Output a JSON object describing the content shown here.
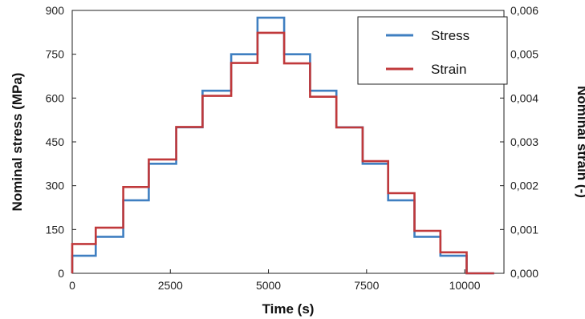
{
  "chart_data": {
    "type": "line",
    "title": "",
    "xlabel": "Time (s)",
    "ylabel_left": "Nominal stress (MPa)",
    "ylabel_right": "Nominal strain (-)",
    "xlim": [
      0,
      11000
    ],
    "ylim_left": [
      0,
      900
    ],
    "ylim_right": [
      0,
      0.006
    ],
    "x_ticks": [
      0,
      2500,
      5000,
      7500,
      10000
    ],
    "x_tick_labels": [
      "0",
      "2500",
      "5000",
      "7500",
      "10000"
    ],
    "y_left_ticks": [
      0,
      150,
      300,
      450,
      600,
      750,
      900
    ],
    "y_left_tick_labels": [
      "0",
      "150",
      "300",
      "450",
      "600",
      "750",
      "900"
    ],
    "y_right_ticks": [
      0,
      0.001,
      0.002,
      0.003,
      0.004,
      0.005,
      0.006
    ],
    "y_right_tick_labels": [
      "0,000",
      "0,001",
      "0,002",
      "0,003",
      "0,004",
      "0,005",
      "0,006"
    ],
    "grid": false,
    "legend_position": "top-right",
    "series": [
      {
        "name": "Stress",
        "axis": "left",
        "color": "#3f7fc1",
        "steps": [
          {
            "x0": 0,
            "x1": 600,
            "y": 60
          },
          {
            "x0": 600,
            "x1": 1300,
            "y": 125
          },
          {
            "x0": 1300,
            "x1": 1950,
            "y": 250
          },
          {
            "x0": 1950,
            "x1": 2650,
            "y": 375
          },
          {
            "x0": 2650,
            "x1": 3320,
            "y": 500
          },
          {
            "x0": 3320,
            "x1": 4050,
            "y": 625
          },
          {
            "x0": 4050,
            "x1": 4720,
            "y": 750
          },
          {
            "x0": 4720,
            "x1": 5400,
            "y": 875
          },
          {
            "x0": 5400,
            "x1": 6060,
            "y": 750
          },
          {
            "x0": 6060,
            "x1": 6730,
            "y": 625
          },
          {
            "x0": 6730,
            "x1": 7400,
            "y": 500
          },
          {
            "x0": 7400,
            "x1": 8050,
            "y": 375
          },
          {
            "x0": 8050,
            "x1": 8720,
            "y": 250
          },
          {
            "x0": 8720,
            "x1": 9380,
            "y": 125
          },
          {
            "x0": 9380,
            "x1": 10050,
            "y": 60
          },
          {
            "x0": 10050,
            "x1": 10750,
            "y": 0
          }
        ]
      },
      {
        "name": "Strain",
        "axis": "right",
        "color": "#c0393b",
        "steps": [
          {
            "x0": 0,
            "x1": 600,
            "y": 0.00067
          },
          {
            "x0": 600,
            "x1": 1300,
            "y": 0.00104
          },
          {
            "x0": 1300,
            "x1": 1950,
            "y": 0.00197
          },
          {
            "x0": 1950,
            "x1": 2650,
            "y": 0.0026
          },
          {
            "x0": 2650,
            "x1": 3320,
            "y": 0.00334
          },
          {
            "x0": 3320,
            "x1": 4050,
            "y": 0.00405
          },
          {
            "x0": 4050,
            "x1": 4720,
            "y": 0.0048
          },
          {
            "x0": 4720,
            "x1": 5400,
            "y": 0.00549
          },
          {
            "x0": 5400,
            "x1": 6060,
            "y": 0.00479
          },
          {
            "x0": 6060,
            "x1": 6730,
            "y": 0.00403
          },
          {
            "x0": 6730,
            "x1": 7400,
            "y": 0.00333
          },
          {
            "x0": 7400,
            "x1": 8050,
            "y": 0.00256
          },
          {
            "x0": 8050,
            "x1": 8720,
            "y": 0.00183
          },
          {
            "x0": 8720,
            "x1": 9380,
            "y": 0.00097
          },
          {
            "x0": 9380,
            "x1": 10050,
            "y": 0.00048
          },
          {
            "x0": 10050,
            "x1": 10750,
            "y": 0
          }
        ]
      }
    ]
  }
}
